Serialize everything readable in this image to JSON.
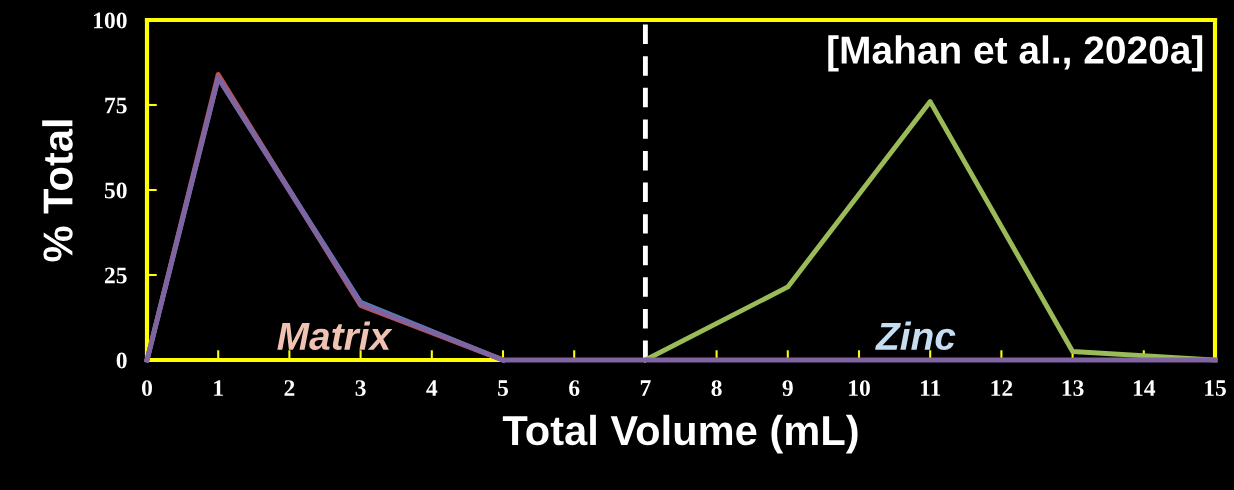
{
  "chart_data": {
    "type": "line",
    "xlabel": "Total Volume (mL)",
    "ylabel": "% Total",
    "x": [
      0,
      1,
      3,
      5,
      7,
      9,
      11,
      13,
      15
    ],
    "series": [
      {
        "color": "#9bbb59",
        "values": [
          null,
          null,
          null,
          null,
          0,
          21.5,
          76,
          2.5,
          0
        ]
      },
      {
        "color": "#c0504d",
        "values": [
          0,
          84,
          16,
          0,
          null,
          null,
          null,
          null,
          null
        ]
      },
      {
        "color": "#4f81bd",
        "values": [
          0,
          83,
          17,
          0,
          null,
          null,
          null,
          null,
          null
        ]
      },
      {
        "color": "#8064a2",
        "values": [
          0,
          83,
          16.5,
          0,
          0,
          0,
          0,
          0,
          0
        ]
      }
    ],
    "xlim": [
      0,
      15
    ],
    "xticks": [
      0,
      1,
      2,
      3,
      4,
      5,
      6,
      7,
      8,
      9,
      10,
      11,
      12,
      13,
      14,
      15
    ],
    "ylim": [
      0,
      100
    ],
    "yticks": [
      0,
      25,
      50,
      75,
      100
    ],
    "ref_lines": [
      {
        "axis": "x",
        "value": 7,
        "color": "#ffffff",
        "line_style": "dashed"
      }
    ],
    "annotations": [
      "[Mahan et al., 2020a]",
      "Matrix",
      "Zinc"
    ],
    "grid": false,
    "legend": false,
    "marker": "none",
    "line_style": "solid"
  }
}
